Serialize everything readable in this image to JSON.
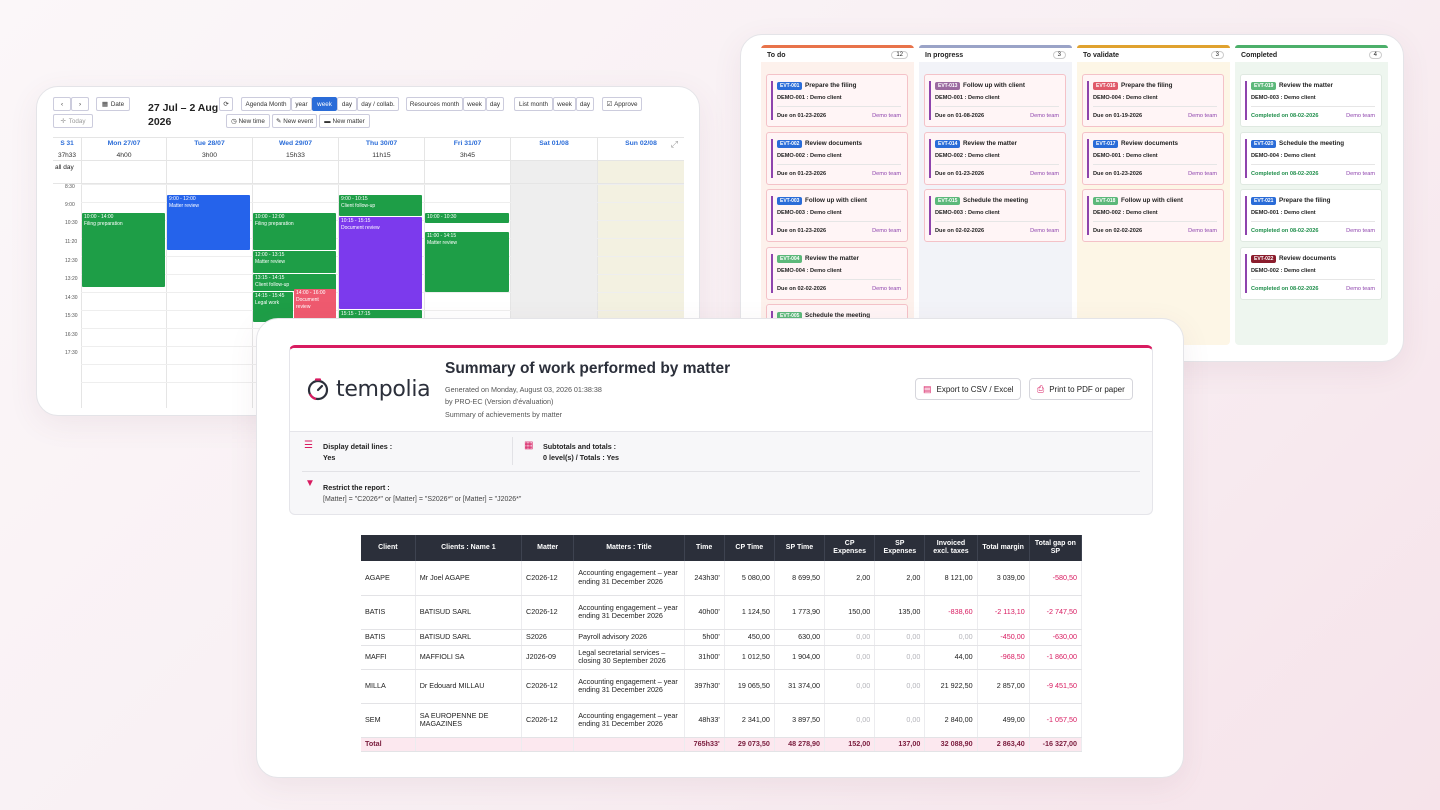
{
  "calendar": {
    "nav_prev": "‹",
    "nav_next": "›",
    "date_btn": "Date",
    "today_btn": "Today",
    "range_title": "27 Jul – 2 Aug 2026",
    "view_buttons": [
      "Agenda Month",
      "year",
      "week",
      "day",
      "day / collab."
    ],
    "active_view": "week",
    "resource_buttons": [
      "Resources month",
      "week",
      "day"
    ],
    "list_buttons": [
      "List month",
      "week",
      "day"
    ],
    "approve_btn": "Approve",
    "new_time_btn": "New time",
    "new_event_btn": "New event",
    "new_matter_btn": "New matter",
    "week_label": "S 31",
    "week_total": "37h33",
    "all_day": "all day",
    "days": [
      {
        "label": "Mon 27/07",
        "total": "4h00"
      },
      {
        "label": "Tue 28/07",
        "total": "3h00"
      },
      {
        "label": "Wed 29/07",
        "total": "15h33"
      },
      {
        "label": "Thu 30/07",
        "total": "11h15"
      },
      {
        "label": "Fri 31/07",
        "total": "3h45"
      },
      {
        "label": "Sat 01/08",
        "total": ""
      },
      {
        "label": "Sun 02/08",
        "total": ""
      }
    ],
    "times": [
      "8:30",
      "9:00",
      "10:30",
      "11:20",
      "12:30",
      "13:20",
      "14:30",
      "15:30",
      "16:30",
      "17:30"
    ],
    "events": [
      {
        "time": "10:00 - 14:00",
        "title": "Filing preparation",
        "color": "#1e9e47"
      },
      {
        "time": "9:00 - 12:00",
        "title": "Matter review",
        "color": "#2563eb"
      },
      {
        "time": "10:00 - 12:00",
        "title": "Filing preparation",
        "color": "#1e9e47"
      },
      {
        "time": "12:00 - 13:15",
        "title": "Matter review",
        "color": "#1e9e47"
      },
      {
        "time": "13:15 - 14:15",
        "title": "Client follow-up",
        "color": "#1e9e47"
      },
      {
        "time": "14:15 - 15:45",
        "title": "Legal work",
        "color": "#1e9e47"
      },
      {
        "time": "14:00 - 16:00",
        "title": "Document review",
        "color": "#ef5a6f"
      },
      {
        "time": "9:00 - 10:15",
        "title": "Client follow-up",
        "color": "#1e9e47"
      },
      {
        "time": "10:15 - 15:15",
        "title": "Document review",
        "color": "#7c3aed"
      },
      {
        "time": "15:15 - 17:15",
        "title": "",
        "color": "#1e9e47"
      },
      {
        "time": "10:00 - 10:30",
        "title": "Filing preparation",
        "color": "#1e9e47"
      },
      {
        "time": "11:00 - 14:15",
        "title": "Matter review",
        "color": "#1e9e47"
      }
    ]
  },
  "kanban": {
    "columns": [
      {
        "title": "To do",
        "count": "12",
        "accent": "#e8734a",
        "cards": [
          {
            "id": "EVT-001",
            "title": "Prepare the filing",
            "client": "DEMO-001 : Demo client",
            "due": "Due on 01-23-2026",
            "team": "Demo team"
          },
          {
            "id": "EVT-002",
            "title": "Review documents",
            "client": "DEMO-002 : Demo client",
            "due": "Due on 01-23-2026",
            "team": "Demo team"
          },
          {
            "id": "EVT-003",
            "title": "Follow up with client",
            "client": "DEMO-003 : Demo client",
            "due": "Due on 01-23-2026",
            "team": "Demo team"
          },
          {
            "id": "EVT-004",
            "title": "Review the matter",
            "client": "DEMO-004 : Demo client",
            "due": "Due on 02-02-2026",
            "team": "Demo team"
          },
          {
            "id": "EVT-005",
            "title": "Schedule the meeting",
            "client": "",
            "due": "",
            "team": ""
          }
        ]
      },
      {
        "title": "In progress",
        "count": "3",
        "accent": "#9aa3c7",
        "cards": [
          {
            "id": "EVT-013",
            "title": "Follow up with client",
            "client": "DEMO-001 : Demo client",
            "due": "Due on 01-08-2026",
            "team": "Demo team"
          },
          {
            "id": "EVT-014",
            "title": "Review the matter",
            "client": "DEMO-002 : Demo client",
            "due": "Due on 01-23-2026",
            "team": "Demo team"
          },
          {
            "id": "EVT-015",
            "title": "Schedule the meeting",
            "client": "DEMO-003 : Demo client",
            "due": "Due on 02-02-2026",
            "team": "Demo team"
          }
        ]
      },
      {
        "title": "To validate",
        "count": "3",
        "accent": "#e0a22e",
        "cards": [
          {
            "id": "EVT-016",
            "title": "Prepare the filing",
            "client": "DEMO-004 : Demo client",
            "due": "Due on 01-19-2026",
            "team": "Demo team"
          },
          {
            "id": "EVT-017",
            "title": "Review documents",
            "client": "DEMO-001 : Demo client",
            "due": "Due on 01-23-2026",
            "team": "Demo team"
          },
          {
            "id": "EVT-018",
            "title": "Follow up with client",
            "client": "DEMO-002 : Demo client",
            "due": "Due on 02-02-2026",
            "team": "Demo team"
          }
        ]
      },
      {
        "title": "Completed",
        "count": "4",
        "accent": "#4caf6a",
        "cards": [
          {
            "id": "EVT-019",
            "title": "Review the matter",
            "client": "DEMO-003 : Demo client",
            "due": "Completed on 08-02-2026",
            "team": "Demo team"
          },
          {
            "id": "EVT-020",
            "title": "Schedule the meeting",
            "client": "DEMO-004 : Demo client",
            "due": "Completed on 08-02-2026",
            "team": "Demo team"
          },
          {
            "id": "EVT-021",
            "title": "Prepare the filing",
            "client": "DEMO-001 : Demo client",
            "due": "Completed on 08-02-2026",
            "team": "Demo team"
          },
          {
            "id": "EVT-022",
            "title": "Review documents",
            "client": "DEMO-002 : Demo client",
            "due": "Completed on 08-02-2026",
            "team": "Demo team"
          }
        ]
      }
    ]
  },
  "report": {
    "logo_text": "tempolia",
    "title": "Summary of work performed by matter",
    "generated": "Generated on Monday, August 03, 2026 01:38:38",
    "by": "by PRO-EC (Version d'évaluation)",
    "subtitle": "Summary of achievements by matter",
    "export_btn": "Export to CSV / Excel",
    "print_btn": "Print to PDF or paper",
    "detail_label": "Display detail lines :",
    "detail_value": "Yes",
    "totals_label": "Subtotals and totals :",
    "totals_value": "0 level(s) / Totals : Yes",
    "restrict_label": "Restrict the report :",
    "restrict_value": "[Matter] = \"C2026*\" or [Matter] = \"S2026*\" or [Matter] = \"J2026*\"",
    "headers": [
      "Client",
      "Clients : Name 1",
      "Matter",
      "Matters : Title",
      "Time",
      "CP Time",
      "SP Time",
      "CP Expenses",
      "SP Expenses",
      "Invoiced excl. taxes",
      "Total margin",
      "Total gap on SP"
    ],
    "rows": [
      [
        "AGAPE",
        "Mr Joel AGAPE",
        "C2026-12",
        "Accounting engagement – year ending 31 December 2026",
        "243h30'",
        "5 080,00",
        "8 699,50",
        "2,00",
        "2,00",
        "8 121,00",
        "3 039,00",
        "-580,50"
      ],
      [
        "BATIS",
        "BATISUD SARL",
        "C2026-12",
        "Accounting engagement – year ending 31 December 2026",
        "40h00'",
        "1 124,50",
        "1 773,90",
        "150,00",
        "135,00",
        "-838,60",
        "-2 113,10",
        "-2 747,50"
      ],
      [
        "BATIS",
        "BATISUD SARL",
        "S2026",
        "Payroll advisory 2026",
        "5h00'",
        "450,00",
        "630,00",
        "0,00",
        "0,00",
        "0,00",
        "-450,00",
        "-630,00"
      ],
      [
        "MAFFI",
        "MAFFIOLI SA",
        "J2026-09",
        "Legal secretarial services – closing 30 September 2026",
        "31h00'",
        "1 012,50",
        "1 904,00",
        "0,00",
        "0,00",
        "44,00",
        "-968,50",
        "-1 860,00"
      ],
      [
        "MILLA",
        "Dr Edouard MILLAU",
        "C2026-12",
        "Accounting engagement – year ending 31 December 2026",
        "397h30'",
        "19 065,50",
        "31 374,00",
        "0,00",
        "0,00",
        "21 922,50",
        "2 857,00",
        "-9 451,50"
      ],
      [
        "SEM",
        "SA EUROPENNE DE MAGAZINES",
        "C2026-12",
        "Accounting engagement – year ending 31 December 2026",
        "48h33'",
        "2 341,00",
        "3 897,50",
        "0,00",
        "0,00",
        "2 840,00",
        "499,00",
        "-1 057,50"
      ]
    ],
    "total_row": [
      "Total",
      "",
      "",
      "",
      "765h33'",
      "29 073,50",
      "48 278,90",
      "152,00",
      "137,00",
      "32 088,90",
      "2 863,40",
      "-16 327,00"
    ]
  }
}
